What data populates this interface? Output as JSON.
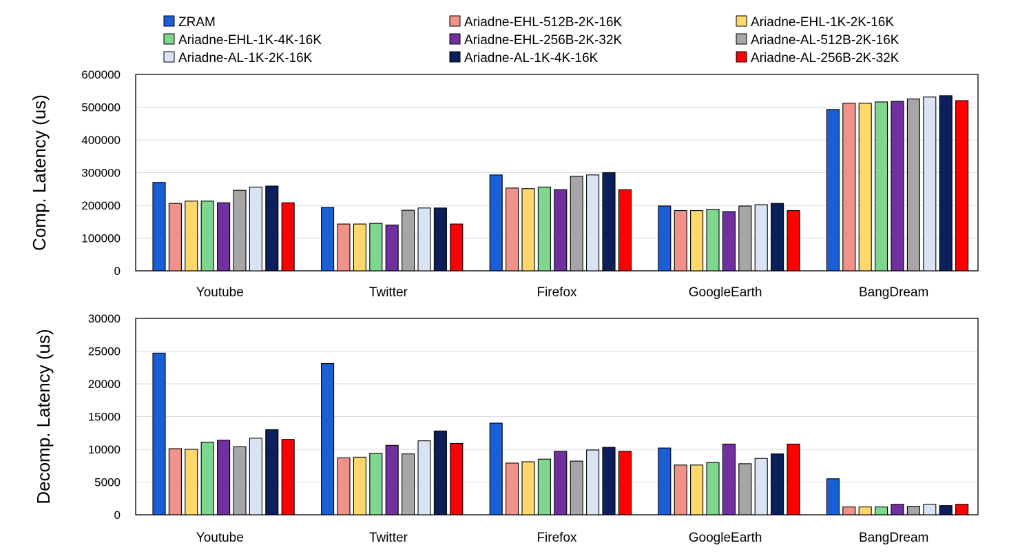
{
  "chart_data": {
    "type": "bar",
    "categories": [
      "Youtube",
      "Twitter",
      "Firefox",
      "GoogleEarth",
      "BangDream"
    ],
    "legend": {
      "placement": "top",
      "entries": [
        {
          "name": "ZRAM",
          "color": "#1a5fd6"
        },
        {
          "name": "Ariadne-EHL-512B-2K-16K",
          "color": "#f0928a"
        },
        {
          "name": "Ariadne-EHL-1K-2K-16K",
          "color": "#ffd86b"
        },
        {
          "name": "Ariadne-EHL-1K-4K-16K",
          "color": "#7fd68e"
        },
        {
          "name": "Ariadne-EHL-256B-2K-32K",
          "color": "#7030a0"
        },
        {
          "name": "Ariadne-AL-512B-2K-16K",
          "color": "#a6a6a6"
        },
        {
          "name": "Ariadne-AL-1K-2K-16K",
          "color": "#dae3f3"
        },
        {
          "name": "Ariadne-AL-1K-4K-16K",
          "color": "#0b1f5c"
        },
        {
          "name": "Ariadne-AL-256B-2K-32K",
          "color": "#ff0000"
        }
      ]
    },
    "panels": [
      {
        "ylabel": "Comp. Latency (us)",
        "ylim": [
          0,
          600000
        ],
        "yticks": [
          "0",
          "100000",
          "200000",
          "300000",
          "400000",
          "500000",
          "600000"
        ],
        "grid": true,
        "series": [
          {
            "name": "ZRAM",
            "values": [
              270000,
              194000,
              293000,
              198000,
              493000
            ]
          },
          {
            "name": "Ariadne-EHL-512B-2K-16K",
            "values": [
              206000,
              143000,
              253000,
              184000,
              512000
            ]
          },
          {
            "name": "Ariadne-EHL-1K-2K-16K",
            "values": [
              213000,
              143000,
              251000,
              184000,
              512000
            ]
          },
          {
            "name": "Ariadne-EHL-1K-4K-16K",
            "values": [
              213000,
              145000,
              256000,
              188000,
              516000
            ]
          },
          {
            "name": "Ariadne-EHL-256B-2K-32K",
            "values": [
              208000,
              140000,
              248000,
              181000,
              518000
            ]
          },
          {
            "name": "Ariadne-AL-512B-2K-16K",
            "values": [
              246000,
              185000,
              289000,
              198000,
              525000
            ]
          },
          {
            "name": "Ariadne-AL-1K-2K-16K",
            "values": [
              256000,
              192000,
              293000,
              202000,
              531000
            ]
          },
          {
            "name": "Ariadne-AL-1K-4K-16K",
            "values": [
              259000,
              192000,
              300000,
              206000,
              535000
            ]
          },
          {
            "name": "Ariadne-AL-256B-2K-32K",
            "values": [
              208000,
              143000,
              248000,
              184000,
              520000
            ]
          }
        ]
      },
      {
        "ylabel": "Decomp. Latency (us)",
        "ylim": [
          0,
          30000
        ],
        "yticks": [
          "0",
          "5000",
          "10000",
          "15000",
          "20000",
          "25000",
          "30000"
        ],
        "grid": true,
        "series": [
          {
            "name": "ZRAM",
            "values": [
              24700,
              23100,
              14000,
              10200,
              5500
            ]
          },
          {
            "name": "Ariadne-EHL-512B-2K-16K",
            "values": [
              10100,
              8700,
              7900,
              7600,
              1200
            ]
          },
          {
            "name": "Ariadne-EHL-1K-2K-16K",
            "values": [
              10000,
              8800,
              8100,
              7600,
              1200
            ]
          },
          {
            "name": "Ariadne-EHL-1K-4K-16K",
            "values": [
              11100,
              9400,
              8500,
              8000,
              1200
            ]
          },
          {
            "name": "Ariadne-EHL-256B-2K-32K",
            "values": [
              11400,
              10600,
              9700,
              10800,
              1600
            ]
          },
          {
            "name": "Ariadne-AL-512B-2K-16K",
            "values": [
              10400,
              9300,
              8200,
              7800,
              1300
            ]
          },
          {
            "name": "Ariadne-AL-1K-2K-16K",
            "values": [
              11700,
              11300,
              9900,
              8600,
              1600
            ]
          },
          {
            "name": "Ariadne-AL-1K-4K-16K",
            "values": [
              13000,
              12800,
              10300,
              9300,
              1400
            ]
          },
          {
            "name": "Ariadne-AL-256B-2K-32K",
            "values": [
              11500,
              10900,
              9700,
              10800,
              1600
            ]
          }
        ]
      }
    ]
  }
}
